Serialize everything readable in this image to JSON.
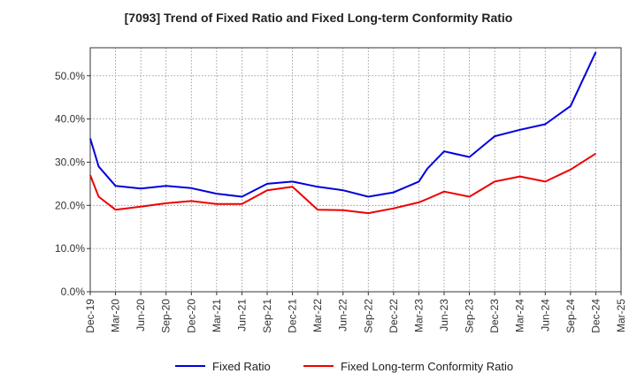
{
  "chart_data": {
    "type": "line",
    "title": "[7093]  Trend of Fixed Ratio and Fixed Long-term Conformity Ratio",
    "xlabel": "",
    "ylabel": "",
    "ylim": [
      0,
      0.565
    ],
    "y_tick_values": [
      0,
      0.1,
      0.2,
      0.3,
      0.4,
      0.5
    ],
    "y_tick_labels": [
      "0.0%",
      "10.0%",
      "20.0%",
      "30.0%",
      "40.0%",
      "50.0%"
    ],
    "x_tick_labels": [
      "Dec-19",
      "Mar-20",
      "Jun-20",
      "Sep-20",
      "Dec-20",
      "Mar-21",
      "Jun-21",
      "Sep-21",
      "Dec-21",
      "Mar-22",
      "Jun-22",
      "Sep-22",
      "Dec-22",
      "Mar-23",
      "Jun-23",
      "Sep-23",
      "Dec-23",
      "Mar-24",
      "Jun-24",
      "Sep-24",
      "Dec-24",
      "Mar-25"
    ],
    "x_dates": [
      "2019-12",
      "2020-01",
      "2020-03",
      "2020-06",
      "2020-09",
      "2020-12",
      "2021-03",
      "2021-06",
      "2021-09",
      "2021-12",
      "2022-03",
      "2022-06",
      "2022-09",
      "2022-12",
      "2023-03",
      "2023-04",
      "2023-06",
      "2023-09",
      "2023-12",
      "2024-03",
      "2024-06",
      "2024-09",
      "2024-12"
    ],
    "grid": true,
    "legend_position": "bottom",
    "series": [
      {
        "name": "Fixed Ratio",
        "color": "#0000dd",
        "values": [
          0.355,
          0.29,
          0.245,
          0.239,
          0.245,
          0.24,
          0.227,
          0.22,
          0.25,
          0.255,
          0.243,
          0.235,
          0.22,
          0.23,
          0.255,
          0.285,
          0.325,
          0.312,
          0.36,
          0.375,
          0.388,
          0.43,
          0.555
        ]
      },
      {
        "name": "Fixed Long-term Conformity Ratio",
        "color": "#ee0000",
        "values": [
          0.27,
          0.22,
          0.19,
          0.197,
          0.205,
          0.21,
          0.203,
          0.203,
          0.235,
          0.243,
          0.19,
          0.189,
          0.182,
          0.193,
          0.207,
          0.215,
          0.232,
          0.22,
          0.255,
          0.267,
          0.255,
          0.283,
          0.32
        ]
      }
    ]
  }
}
